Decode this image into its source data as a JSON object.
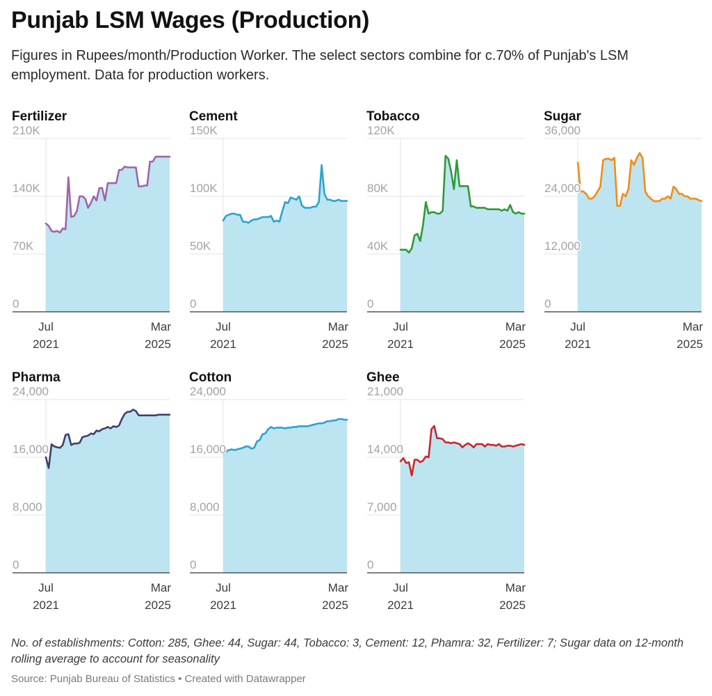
{
  "title": "Punjab LSM Wages (Production)",
  "subtitle": "Figures in Rupees/month/Production Worker. The select sectors combine for c.70% of Punjab's LSM employment. Data for production workers.",
  "notes": "No. of establishments: Cotton: 285, Ghee: 44, Sugar: 44, Tobacco: 3, Cement: 12, Phamra: 32, Fertilizer: 7; Sugar data on 12-month rolling average to account for seasonality",
  "source": "Source: Punjab Bureau of Statistics • Created with Datawrapper",
  "colors": {
    "area_fill": "#bde4f1",
    "grid": "#e3e3e3",
    "axis": "#333333",
    "tick_label": "#a3a3a3",
    "fertilizer": "#a064a8",
    "cement": "#2aa3cf",
    "tobacco": "#2e9a35",
    "sugar": "#f08e12",
    "pharma": "#3f3f6b",
    "cotton": "#2aa3cf",
    "ghee": "#c62828"
  },
  "chart_data": [
    {
      "type": "area",
      "title": "Fertilizer",
      "color_key": "fertilizer",
      "x": [
        "2021-07",
        "2021-08",
        "2021-09",
        "2021-10",
        "2021-11",
        "2021-12",
        "2022-01",
        "2022-02",
        "2022-03",
        "2022-04",
        "2022-05",
        "2022-06",
        "2022-07",
        "2022-08",
        "2022-09",
        "2022-10",
        "2022-11",
        "2022-12",
        "2023-01",
        "2023-02",
        "2023-03",
        "2023-04",
        "2023-05",
        "2023-06",
        "2023-07",
        "2023-08",
        "2023-09",
        "2023-10",
        "2023-11",
        "2023-12",
        "2024-01",
        "2024-02",
        "2024-03",
        "2024-04",
        "2024-05",
        "2024-06",
        "2024-07",
        "2024-08",
        "2024-09",
        "2024-10",
        "2024-11",
        "2024-12",
        "2025-01",
        "2025-02",
        "2025-03"
      ],
      "values": [
        107000,
        104000,
        98000,
        97000,
        98000,
        96000,
        101000,
        100000,
        163000,
        115000,
        116000,
        122000,
        140000,
        140000,
        137000,
        126000,
        132000,
        140000,
        135000,
        150000,
        150000,
        135000,
        156000,
        156000,
        156000,
        156000,
        172000,
        172000,
        176000,
        175000,
        175000,
        175000,
        175000,
        152000,
        152000,
        153000,
        153000,
        182000,
        182000,
        188000,
        188000,
        188000,
        188000,
        188000,
        188000
      ],
      "ylim": [
        0,
        210000
      ],
      "yticks": [
        0,
        70000,
        140000,
        210000
      ],
      "ytick_labels": [
        "0",
        "70K",
        "140K",
        "210K"
      ],
      "xtick_labels": [
        [
          "Jul",
          "2021"
        ],
        [
          "Mar",
          "2025"
        ]
      ]
    },
    {
      "type": "area",
      "title": "Cement",
      "color_key": "cement",
      "x": [
        "2021-07",
        "2021-08",
        "2021-09",
        "2021-10",
        "2021-11",
        "2021-12",
        "2022-01",
        "2022-02",
        "2022-03",
        "2022-04",
        "2022-05",
        "2022-06",
        "2022-07",
        "2022-08",
        "2022-09",
        "2022-10",
        "2022-11",
        "2022-12",
        "2023-01",
        "2023-02",
        "2023-03",
        "2023-04",
        "2023-05",
        "2023-06",
        "2023-07",
        "2023-08",
        "2023-09",
        "2023-10",
        "2023-11",
        "2023-12",
        "2024-01",
        "2024-02",
        "2024-03",
        "2024-04",
        "2024-05",
        "2024-06",
        "2024-07",
        "2024-08",
        "2024-09",
        "2024-10",
        "2024-11",
        "2024-12",
        "2025-01",
        "2025-02",
        "2025-03"
      ],
      "values": [
        79000,
        83000,
        84000,
        85000,
        85000,
        84000,
        84000,
        78000,
        78000,
        77000,
        79000,
        80000,
        80000,
        81000,
        82000,
        82000,
        82000,
        83000,
        78000,
        79000,
        78000,
        87000,
        95000,
        94000,
        99000,
        98000,
        97000,
        100000,
        92000,
        90000,
        90000,
        90000,
        91000,
        91000,
        95000,
        127000,
        102000,
        97000,
        97000,
        96000,
        96000,
        97000,
        96000,
        96000,
        96000
      ],
      "ylim": [
        0,
        150000
      ],
      "yticks": [
        0,
        50000,
        100000,
        150000
      ],
      "ytick_labels": [
        "0",
        "50K",
        "100K",
        "150K"
      ],
      "xtick_labels": [
        [
          "Jul",
          "2021"
        ],
        [
          "Mar",
          "2025"
        ]
      ]
    },
    {
      "type": "area",
      "title": "Tobacco",
      "color_key": "tobacco",
      "x": [
        "2021-07",
        "2021-08",
        "2021-09",
        "2021-10",
        "2021-11",
        "2021-12",
        "2022-01",
        "2022-02",
        "2022-03",
        "2022-04",
        "2022-05",
        "2022-06",
        "2022-07",
        "2022-08",
        "2022-09",
        "2022-10",
        "2022-11",
        "2022-12",
        "2023-01",
        "2023-02",
        "2023-03",
        "2023-04",
        "2023-05",
        "2023-06",
        "2023-07",
        "2023-08",
        "2023-09",
        "2023-10",
        "2023-11",
        "2023-12",
        "2024-01",
        "2024-02",
        "2024-03",
        "2024-04",
        "2024-05",
        "2024-06",
        "2024-07",
        "2024-08",
        "2024-09",
        "2024-10",
        "2024-11",
        "2024-12",
        "2025-01",
        "2025-02",
        "2025-03"
      ],
      "values": [
        43000,
        43000,
        43000,
        41000,
        44000,
        53000,
        54000,
        49000,
        60000,
        76000,
        68000,
        69000,
        69000,
        68000,
        68000,
        70000,
        108000,
        106000,
        97000,
        85000,
        105000,
        87000,
        87000,
        87000,
        87000,
        73000,
        73000,
        72000,
        72000,
        72000,
        72000,
        71000,
        71000,
        71000,
        71000,
        71000,
        70000,
        71000,
        70000,
        74000,
        69000,
        68000,
        69000,
        68000,
        68000
      ],
      "ylim": [
        0,
        120000
      ],
      "yticks": [
        0,
        40000,
        80000,
        120000
      ],
      "ytick_labels": [
        "0",
        "40K",
        "80K",
        "120K"
      ],
      "xtick_labels": [
        [
          "Jul",
          "2021"
        ],
        [
          "Mar",
          "2025"
        ]
      ]
    },
    {
      "type": "area",
      "title": "Sugar",
      "color_key": "sugar",
      "x": [
        "2021-07",
        "2021-08",
        "2021-09",
        "2021-10",
        "2021-11",
        "2021-12",
        "2022-01",
        "2022-02",
        "2022-03",
        "2022-04",
        "2022-05",
        "2022-06",
        "2022-07",
        "2022-08",
        "2022-09",
        "2022-10",
        "2022-11",
        "2022-12",
        "2023-01",
        "2023-02",
        "2023-03",
        "2023-04",
        "2023-05",
        "2023-06",
        "2023-07",
        "2023-08",
        "2023-09",
        "2023-10",
        "2023-11",
        "2023-12",
        "2024-01",
        "2024-02",
        "2024-03",
        "2024-04",
        "2024-05",
        "2024-06",
        "2024-07",
        "2024-08",
        "2024-09",
        "2024-10",
        "2024-11",
        "2024-12",
        "2025-01",
        "2025-02",
        "2025-03"
      ],
      "values": [
        31000,
        25000,
        25000,
        24500,
        23500,
        23500,
        24000,
        25000,
        26000,
        31500,
        31800,
        31800,
        31500,
        32000,
        22000,
        22000,
        24500,
        24000,
        25500,
        31500,
        30500,
        32000,
        33000,
        32000,
        25000,
        24000,
        23500,
        23000,
        23000,
        23000,
        23500,
        23500,
        24000,
        23500,
        26000,
        25500,
        24500,
        24500,
        24000,
        24000,
        23500,
        23500,
        23500,
        23200,
        23000
      ],
      "ylim": [
        0,
        36000
      ],
      "yticks": [
        0,
        12000,
        24000,
        36000
      ],
      "ytick_labels": [
        "0",
        "12,000",
        "24,000",
        "36,000"
      ],
      "xtick_labels": [
        [
          "Jul",
          "2021"
        ],
        [
          "Mar",
          "2025"
        ]
      ]
    },
    {
      "type": "area",
      "title": "Pharma",
      "color_key": "pharma",
      "x": [
        "2021-07",
        "2021-08",
        "2021-09",
        "2021-10",
        "2021-11",
        "2021-12",
        "2022-01",
        "2022-02",
        "2022-03",
        "2022-04",
        "2022-05",
        "2022-06",
        "2022-07",
        "2022-08",
        "2022-09",
        "2022-10",
        "2022-11",
        "2022-12",
        "2023-01",
        "2023-02",
        "2023-03",
        "2023-04",
        "2023-05",
        "2023-06",
        "2023-07",
        "2023-08",
        "2023-09",
        "2023-10",
        "2023-11",
        "2023-12",
        "2024-01",
        "2024-02",
        "2024-03",
        "2024-04",
        "2024-05",
        "2024-06",
        "2024-07",
        "2024-08",
        "2024-09",
        "2024-10",
        "2024-11",
        "2024-12",
        "2025-01",
        "2025-02",
        "2025-03"
      ],
      "values": [
        16000,
        14500,
        17800,
        17500,
        17400,
        17300,
        17700,
        19100,
        19200,
        17700,
        17900,
        17900,
        18000,
        18800,
        18900,
        19000,
        19300,
        19200,
        19700,
        19600,
        19900,
        20000,
        20200,
        20000,
        20300,
        20200,
        20400,
        21300,
        22000,
        22300,
        22300,
        22600,
        22400,
        21800,
        21800,
        21800,
        21800,
        21800,
        21800,
        21800,
        21900,
        21900,
        21900,
        21900,
        21900
      ],
      "ylim": [
        0,
        24000
      ],
      "yticks": [
        0,
        8000,
        16000,
        24000
      ],
      "ytick_labels": [
        "0",
        "8,000",
        "16,000",
        "24,000"
      ],
      "xtick_labels": [
        [
          "Jul",
          "2021"
        ],
        [
          "Mar",
          "2025"
        ]
      ]
    },
    {
      "type": "area",
      "title": "Cotton",
      "color_key": "cotton",
      "x": [
        "2021-07",
        "2021-08",
        "2021-09",
        "2021-10",
        "2021-11",
        "2021-12",
        "2022-01",
        "2022-02",
        "2022-03",
        "2022-04",
        "2022-05",
        "2022-06",
        "2022-07",
        "2022-08",
        "2022-09",
        "2022-10",
        "2022-11",
        "2022-12",
        "2023-01",
        "2023-02",
        "2023-03",
        "2023-04",
        "2023-05",
        "2023-06",
        "2023-07",
        "2023-08",
        "2023-09",
        "2023-10",
        "2023-11",
        "2023-12",
        "2024-01",
        "2024-02",
        "2024-03",
        "2024-04",
        "2024-05",
        "2024-06",
        "2024-07",
        "2024-08",
        "2024-09",
        "2024-10",
        "2024-11",
        "2024-12",
        "2025-01",
        "2025-02",
        "2025-03"
      ],
      "values": [
        16500,
        16800,
        17000,
        17100,
        17000,
        17100,
        17200,
        17300,
        17500,
        17500,
        17200,
        17300,
        18200,
        18400,
        19200,
        19300,
        19900,
        20200,
        20000,
        20100,
        20100,
        20100,
        20000,
        20100,
        20100,
        20200,
        20200,
        20300,
        20300,
        20300,
        20300,
        20400,
        20500,
        20600,
        20700,
        20700,
        20800,
        21000,
        21000,
        21100,
        21100,
        21300,
        21300,
        21200,
        21200
      ],
      "ylim": [
        0,
        24000
      ],
      "yticks": [
        0,
        8000,
        16000,
        24000
      ],
      "ytick_labels": [
        "0",
        "8,000",
        "16,000",
        "24,000"
      ],
      "xtick_labels": [
        [
          "Jul",
          "2021"
        ],
        [
          "Mar",
          "2025"
        ]
      ]
    },
    {
      "type": "area",
      "title": "Ghee",
      "color_key": "ghee",
      "x": [
        "2021-07",
        "2021-08",
        "2021-09",
        "2021-10",
        "2021-11",
        "2021-12",
        "2022-01",
        "2022-02",
        "2022-03",
        "2022-04",
        "2022-05",
        "2022-06",
        "2022-07",
        "2022-08",
        "2022-09",
        "2022-10",
        "2022-11",
        "2022-12",
        "2023-01",
        "2023-02",
        "2023-03",
        "2023-04",
        "2023-05",
        "2023-06",
        "2023-07",
        "2023-08",
        "2023-09",
        "2023-10",
        "2023-11",
        "2023-12",
        "2024-01",
        "2024-02",
        "2024-03",
        "2024-04",
        "2024-05",
        "2024-06",
        "2024-07",
        "2024-08",
        "2024-09",
        "2024-10",
        "2024-11",
        "2024-12",
        "2025-01",
        "2025-02",
        "2025-03"
      ],
      "values": [
        13500,
        13900,
        13300,
        13400,
        11800,
        13700,
        13700,
        13400,
        13600,
        14100,
        14000,
        17400,
        17800,
        16300,
        16300,
        16200,
        15800,
        15800,
        15700,
        15800,
        15700,
        15600,
        15200,
        15500,
        15700,
        15500,
        15200,
        15600,
        15600,
        15600,
        15300,
        15600,
        15500,
        15500,
        15400,
        15600,
        15300,
        15300,
        15400,
        15400,
        15300,
        15400,
        15500,
        15600,
        15500
      ],
      "ylim": [
        0,
        21000
      ],
      "yticks": [
        0,
        7000,
        14000,
        21000
      ],
      "ytick_labels": [
        "0",
        "7,000",
        "14,000",
        "21,000"
      ],
      "xtick_labels": [
        [
          "Jul",
          "2021"
        ],
        [
          "Mar",
          "2025"
        ]
      ]
    }
  ]
}
